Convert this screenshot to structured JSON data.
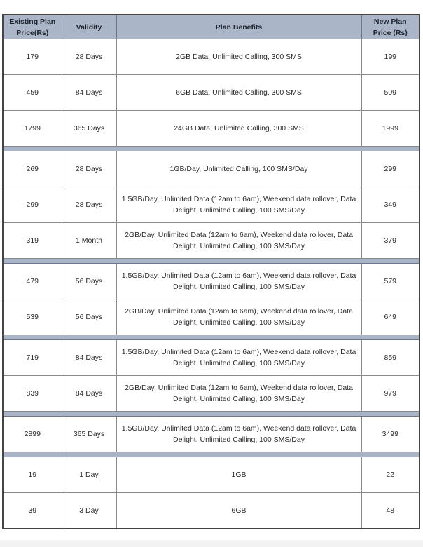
{
  "header": {
    "existing_price": "Existing Plan Price(Rs)",
    "validity": "Validity",
    "benefits": "Plan Benefits",
    "new_price": "New Plan Price (Rs)"
  },
  "colors": {
    "header_bg": "#aab6c8",
    "separator": "#a9b5c7"
  },
  "groups": [
    [
      {
        "existing": "179",
        "validity": "28 Days",
        "benefits": "2GB Data, Unlimited Calling, 300 SMS",
        "new": "199"
      },
      {
        "existing": "459",
        "validity": "84 Days",
        "benefits": "6GB Data, Unlimited Calling, 300 SMS",
        "new": "509"
      },
      {
        "existing": "1799",
        "validity": "365 Days",
        "benefits": "24GB Data, Unlimited Calling, 300 SMS",
        "new": "1999"
      }
    ],
    [
      {
        "existing": "269",
        "validity": "28 Days",
        "benefits": "1GB/Day, Unlimited Calling, 100 SMS/Day",
        "new": "299"
      },
      {
        "existing": "299",
        "validity": "28 Days",
        "benefits": "1.5GB/Day, Unlimited Data (12am to 6am), Weekend data rollover, Data Delight, Unlimited Calling, 100 SMS/Day",
        "new": "349"
      },
      {
        "existing": "319",
        "validity": "1 Month",
        "benefits": "2GB/Day, Unlimited Data (12am to 6am), Weekend data rollover, Data Delight, Unlimited Calling, 100 SMS/Day",
        "new": "379"
      }
    ],
    [
      {
        "existing": "479",
        "validity": "56 Days",
        "benefits": "1.5GB/Day, Unlimited Data (12am to 6am), Weekend data rollover, Data Delight, Unlimited Calling, 100 SMS/Day",
        "new": "579"
      },
      {
        "existing": "539",
        "validity": "56 Days",
        "benefits": "2GB/Day, Unlimited Data (12am to 6am), Weekend data rollover, Data Delight, Unlimited Calling, 100 SMS/Day",
        "new": "649"
      }
    ],
    [
      {
        "existing": "719",
        "validity": "84 Days",
        "benefits": "1.5GB/Day, Unlimited Data (12am to 6am), Weekend data rollover, Data Delight, Unlimited Calling, 100 SMS/Day",
        "new": "859"
      },
      {
        "existing": "839",
        "validity": "84 Days",
        "benefits": "2GB/Day, Unlimited Data (12am to 6am), Weekend data rollover, Data Delight, Unlimited Calling, 100 SMS/Day",
        "new": "979"
      }
    ],
    [
      {
        "existing": "2899",
        "validity": "365 Days",
        "benefits": "1.5GB/Day, Unlimited Data (12am to 6am), Weekend data rollover, Data Delight, Unlimited Calling, 100 SMS/Day",
        "new": "3499"
      }
    ],
    [
      {
        "existing": "19",
        "validity": "1 Day",
        "benefits": "1GB",
        "new": "22"
      },
      {
        "existing": "39",
        "validity": "3 Day",
        "benefits": "6GB",
        "new": "48"
      }
    ]
  ]
}
